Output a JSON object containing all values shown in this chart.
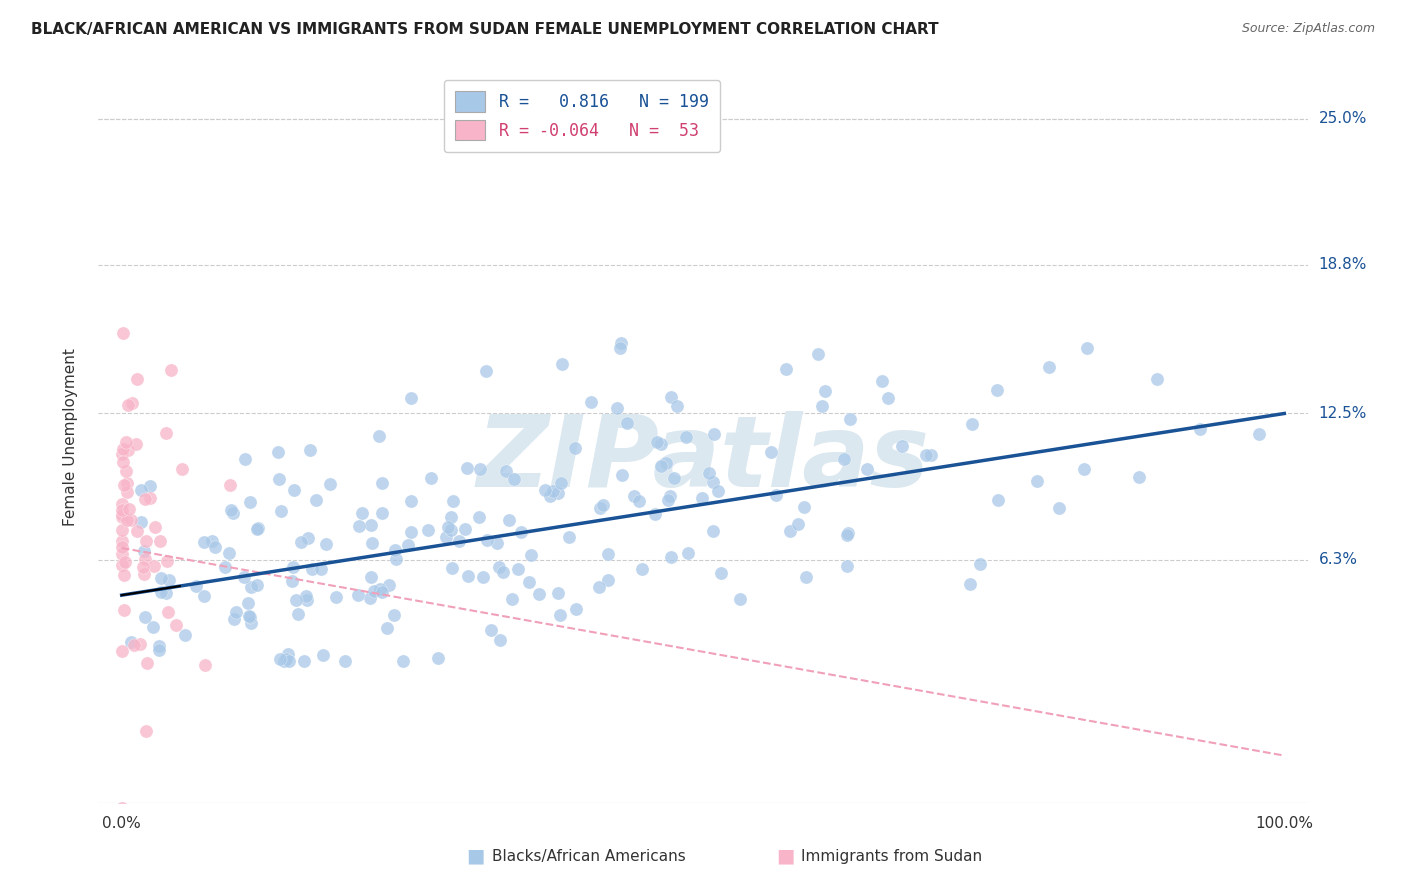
{
  "title": "BLACK/AFRICAN AMERICAN VS IMMIGRANTS FROM SUDAN FEMALE UNEMPLOYMENT CORRELATION CHART",
  "source": "Source: ZipAtlas.com",
  "ylabel": "Female Unemployment",
  "xlabel": "",
  "xlim": [
    -0.02,
    1.02
  ],
  "ylim": [
    -0.04,
    0.27
  ],
  "ytick_vals": [
    0.063,
    0.125,
    0.188,
    0.25
  ],
  "ytick_labels": [
    "6.3%",
    "12.5%",
    "18.8%",
    "25.0%"
  ],
  "xtick_vals": [
    0.0,
    0.25,
    0.5,
    0.75,
    1.0
  ],
  "xtick_labels": [
    "0.0%",
    "",
    "",
    "",
    "100.0%"
  ],
  "blue_R": 0.816,
  "blue_N": 199,
  "pink_R": -0.064,
  "pink_N": 53,
  "blue_color": "#a8c8e8",
  "pink_color": "#f8b4c8",
  "blue_line_color": "#1a5296",
  "pink_line_color": "#f0a0b8",
  "watermark_text": "ZIPatlas",
  "watermark_color": "#dce8f0",
  "legend_blue_label": "Blacks/African Americans",
  "legend_pink_label": "Immigrants from Sudan",
  "background_color": "#ffffff",
  "grid_color": "#cccccc",
  "title_fontsize": 11,
  "blue_line_start_y": 0.048,
  "blue_line_end_y": 0.125,
  "pink_line_start_y": 0.068,
  "pink_line_end_y": -0.02,
  "seed": 42
}
